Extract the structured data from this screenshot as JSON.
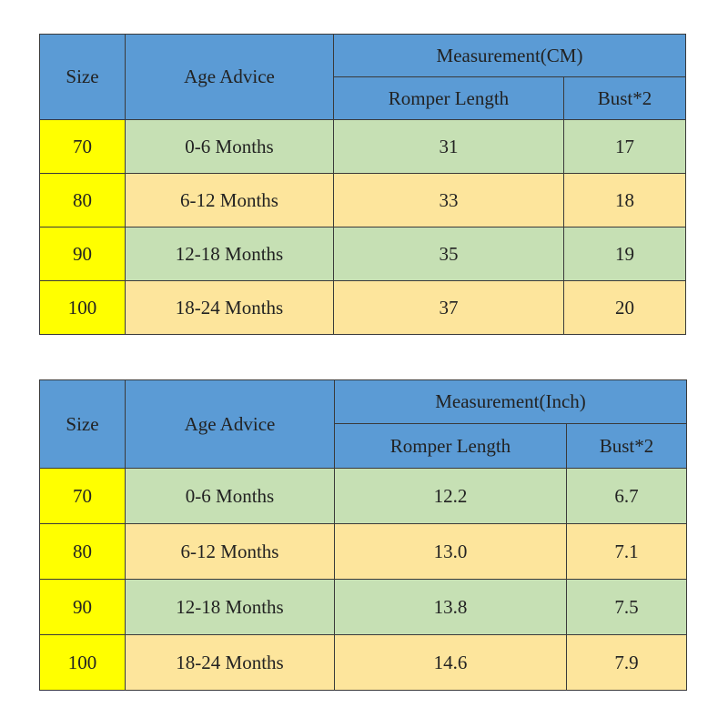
{
  "tables": [
    {
      "header": {
        "size": "Size",
        "age": "Age Advice",
        "group": "Measurement(CM)",
        "columns": [
          "Romper Length",
          "Bust*2"
        ]
      },
      "rows": [
        [
          "70",
          "0-6 Months",
          "31",
          "17"
        ],
        [
          "80",
          "6-12 Months",
          "33",
          "18"
        ],
        [
          "90",
          "12-18 Months",
          "35",
          "19"
        ],
        [
          "100",
          "18-24 Months",
          "37",
          "20"
        ]
      ]
    },
    {
      "header": {
        "size": "Size",
        "age": "Age Advice",
        "group": "Measurement(Inch)",
        "columns": [
          "Romper Length",
          "Bust*2"
        ]
      },
      "rows": [
        [
          "70",
          "0-6 Months",
          "12.2",
          "6.7"
        ],
        [
          "80",
          "6-12 Months",
          "13.0",
          "7.1"
        ],
        [
          "90",
          "12-18 Months",
          "13.8",
          "7.5"
        ],
        [
          "100",
          "18-24 Months",
          "14.6",
          "7.9"
        ]
      ]
    }
  ]
}
